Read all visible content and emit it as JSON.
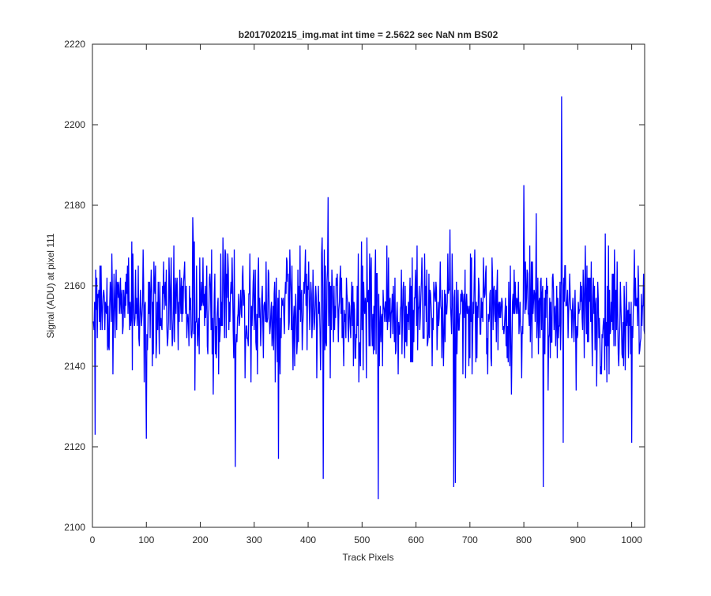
{
  "chart_data": {
    "type": "line",
    "title": "b2017020215_img.mat int time = 2.5622 sec  NaN nm BS02",
    "xlabel": "Track Pixels",
    "ylabel": "Signal (ADU) at pixel 111",
    "xlim": [
      0,
      1024
    ],
    "ylim": [
      2100,
      2220
    ],
    "xticks": [
      0,
      100,
      200,
      300,
      400,
      500,
      600,
      700,
      800,
      900,
      1000
    ],
    "yticks": [
      2100,
      2120,
      2140,
      2160,
      2180,
      2200,
      2220
    ],
    "grid": false,
    "line_color": "#0000ff",
    "series": [
      {
        "x_start": 1,
        "x_step": 1,
        "noise_mean": 2154,
        "noise_spread": 9,
        "values": [],
        "notable_points": [
          {
            "x": 5,
            "y": 2123
          },
          {
            "x": 100,
            "y": 2122
          },
          {
            "x": 265,
            "y": 2115
          },
          {
            "x": 345,
            "y": 2117
          },
          {
            "x": 428,
            "y": 2112
          },
          {
            "x": 437,
            "y": 2182
          },
          {
            "x": 530,
            "y": 2107
          },
          {
            "x": 670,
            "y": 2110
          },
          {
            "x": 673,
            "y": 2111
          },
          {
            "x": 800,
            "y": 2185
          },
          {
            "x": 836,
            "y": 2110
          },
          {
            "x": 870,
            "y": 2207
          },
          {
            "x": 873,
            "y": 2121
          },
          {
            "x": 1000,
            "y": 2121
          }
        ]
      }
    ]
  }
}
